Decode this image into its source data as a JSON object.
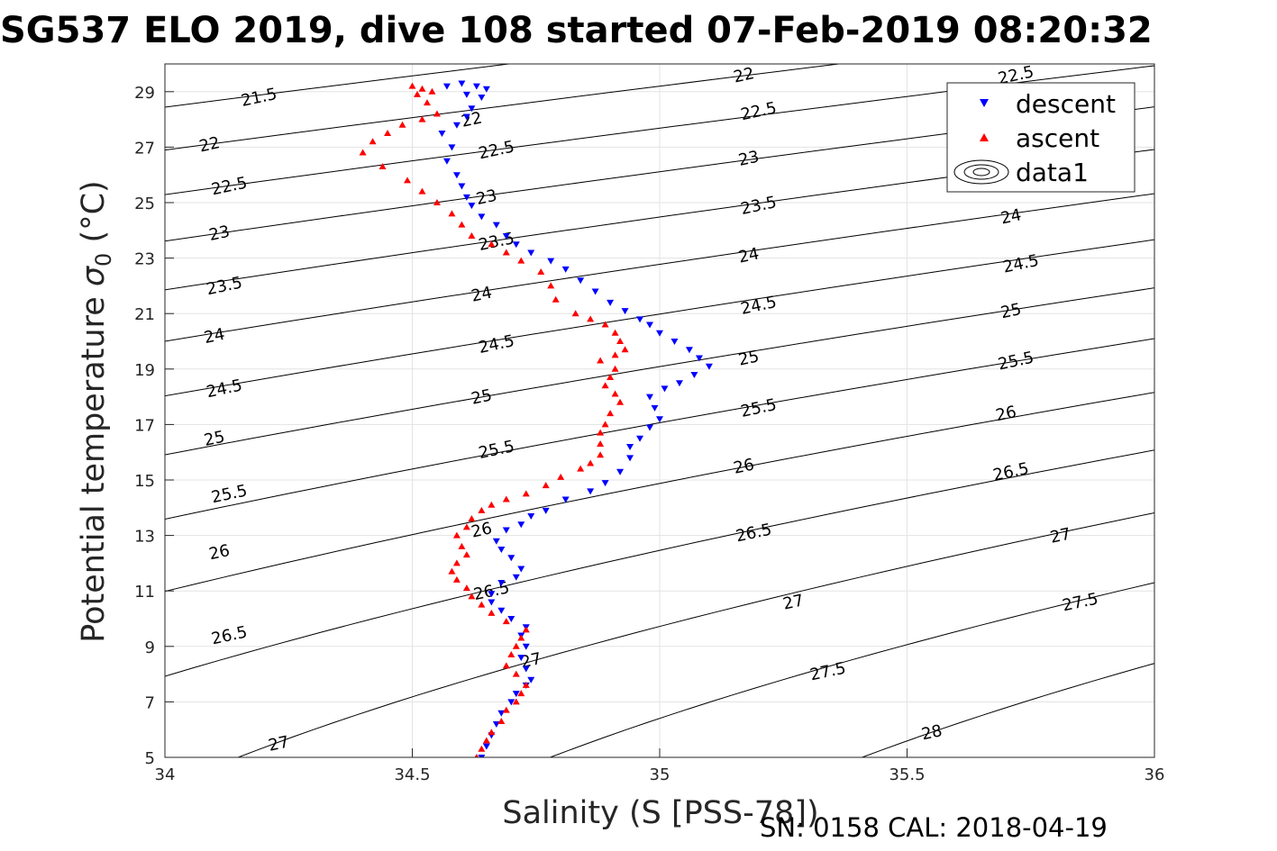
{
  "chart_data": {
    "type": "scatter",
    "title": "SG537 ELO 2019, dive 108 started 07-Feb-2019 08:20:32",
    "xlabel": "Salinity (S [PSS-78])",
    "ylabel_prefix": "Potential temperature",
    "ylabel_symbol": "σ",
    "ylabel_sub": "0",
    "ylabel_unit": "(°C)",
    "footer": "SN: 0158  CAL: 2018-04-19",
    "xlim": [
      34,
      36
    ],
    "ylim": [
      5,
      30
    ],
    "x_ticks": [
      "34",
      "34.5",
      "35",
      "35.5",
      "36"
    ],
    "x_tick_values": [
      34,
      34.5,
      35,
      35.5,
      36
    ],
    "y_ticks": [
      "5",
      "7",
      "9",
      "11",
      "13",
      "15",
      "17",
      "19",
      "21",
      "23",
      "25",
      "27",
      "29"
    ],
    "y_tick_values": [
      5,
      7,
      9,
      11,
      13,
      15,
      17,
      19,
      21,
      23,
      25,
      27,
      29
    ],
    "grid": true,
    "legend_position": "top-right",
    "legend": [
      {
        "label": "descent",
        "marker": "down-triangle",
        "color": "#0000ff"
      },
      {
        "label": "ascent",
        "marker": "up-triangle",
        "color": "#ff0000"
      },
      {
        "label": "data1",
        "marker": "contour",
        "color": "#000000"
      }
    ],
    "contours": {
      "levels": [
        21.5,
        22,
        22.5,
        23,
        23.5,
        24,
        24.5,
        25,
        25.5,
        26,
        26.5,
        27,
        27.5,
        28
      ],
      "labels": [
        {
          "text": "21.5",
          "s": 34.19,
          "t": 28.8
        },
        {
          "text": "22",
          "s": 34.09,
          "t": 27.1
        },
        {
          "text": "22.5",
          "s": 34.13,
          "t": 25.6
        },
        {
          "text": "23",
          "s": 34.11,
          "t": 23.9
        },
        {
          "text": "23.5",
          "s": 34.12,
          "t": 22.0
        },
        {
          "text": "24",
          "s": 34.1,
          "t": 20.2
        },
        {
          "text": "24.5",
          "s": 34.12,
          "t": 18.3
        },
        {
          "text": "25",
          "s": 34.1,
          "t": 16.5
        },
        {
          "text": "25.5",
          "s": 34.13,
          "t": 14.5
        },
        {
          "text": "26",
          "s": 34.11,
          "t": 12.4
        },
        {
          "text": "26.5",
          "s": 34.13,
          "t": 9.4
        },
        {
          "text": "27",
          "s": 34.23,
          "t": 5.5
        },
        {
          "text": "22",
          "s": 34.62,
          "t": 28.0
        },
        {
          "text": "22.5",
          "s": 34.67,
          "t": 26.9
        },
        {
          "text": "23",
          "s": 34.65,
          "t": 25.2
        },
        {
          "text": "23.5",
          "s": 34.67,
          "t": 23.6
        },
        {
          "text": "24",
          "s": 34.64,
          "t": 21.7
        },
        {
          "text": "24.5",
          "s": 34.67,
          "t": 19.9
        },
        {
          "text": "25",
          "s": 34.64,
          "t": 18.0
        },
        {
          "text": "25.5",
          "s": 34.67,
          "t": 16.1
        },
        {
          "text": "26",
          "s": 34.64,
          "t": 13.2
        },
        {
          "text": "26.5",
          "s": 34.66,
          "t": 11.0
        },
        {
          "text": "27",
          "s": 34.74,
          "t": 8.5
        },
        {
          "text": "22",
          "s": 35.17,
          "t": 29.6
        },
        {
          "text": "22.5",
          "s": 35.2,
          "t": 28.3
        },
        {
          "text": "23",
          "s": 35.18,
          "t": 26.6
        },
        {
          "text": "23.5",
          "s": 35.2,
          "t": 24.9
        },
        {
          "text": "24",
          "s": 35.18,
          "t": 23.1
        },
        {
          "text": "24.5",
          "s": 35.2,
          "t": 21.3
        },
        {
          "text": "25",
          "s": 35.18,
          "t": 19.4
        },
        {
          "text": "25.5",
          "s": 35.2,
          "t": 17.6
        },
        {
          "text": "26",
          "s": 35.17,
          "t": 15.5
        },
        {
          "text": "26.5",
          "s": 35.19,
          "t": 13.1
        },
        {
          "text": "27",
          "s": 35.27,
          "t": 10.6
        },
        {
          "text": "27.5",
          "s": 35.34,
          "t": 8.1
        },
        {
          "text": "28",
          "s": 35.55,
          "t": 5.9
        },
        {
          "text": "22.5",
          "s": 35.72,
          "t": 29.6
        },
        {
          "text": "24",
          "s": 35.71,
          "t": 24.5
        },
        {
          "text": "24.5",
          "s": 35.73,
          "t": 22.8
        },
        {
          "text": "25",
          "s": 35.71,
          "t": 21.1
        },
        {
          "text": "25.5",
          "s": 35.72,
          "t": 19.3
        },
        {
          "text": "26",
          "s": 35.7,
          "t": 17.4
        },
        {
          "text": "26.5",
          "s": 35.71,
          "t": 15.3
        },
        {
          "text": "27",
          "s": 35.81,
          "t": 13.0
        },
        {
          "text": "27.5",
          "s": 35.85,
          "t": 10.6
        }
      ]
    },
    "series": [
      {
        "name": "descent",
        "marker": "down-triangle",
        "color": "#0000ff",
        "points": [
          [
            34.64,
            5.0
          ],
          [
            34.65,
            5.4
          ],
          [
            34.66,
            5.8
          ],
          [
            34.67,
            6.2
          ],
          [
            34.68,
            6.6
          ],
          [
            34.7,
            7.0
          ],
          [
            34.71,
            7.3
          ],
          [
            34.73,
            7.6
          ],
          [
            34.74,
            7.8
          ],
          [
            34.73,
            8.2
          ],
          [
            34.72,
            8.6
          ],
          [
            34.73,
            9.0
          ],
          [
            34.72,
            9.4
          ],
          [
            34.73,
            9.7
          ],
          [
            34.7,
            10.0
          ],
          [
            34.68,
            10.3
          ],
          [
            34.66,
            10.6
          ],
          [
            34.66,
            10.9
          ],
          [
            34.68,
            11.3
          ],
          [
            34.71,
            11.5
          ],
          [
            34.72,
            11.8
          ],
          [
            34.7,
            12.2
          ],
          [
            34.68,
            12.5
          ],
          [
            34.67,
            12.8
          ],
          [
            34.69,
            13.2
          ],
          [
            34.72,
            13.4
          ],
          [
            34.74,
            13.7
          ],
          [
            34.77,
            13.9
          ],
          [
            34.81,
            14.3
          ],
          [
            34.86,
            14.6
          ],
          [
            34.89,
            14.9
          ],
          [
            34.92,
            15.3
          ],
          [
            34.94,
            15.8
          ],
          [
            34.94,
            16.2
          ],
          [
            34.96,
            16.5
          ],
          [
            34.98,
            16.9
          ],
          [
            35.0,
            17.2
          ],
          [
            34.99,
            17.6
          ],
          [
            34.98,
            18.0
          ],
          [
            35.01,
            18.3
          ],
          [
            35.04,
            18.5
          ],
          [
            35.07,
            18.8
          ],
          [
            35.1,
            19.1
          ],
          [
            35.08,
            19.4
          ],
          [
            35.06,
            19.7
          ],
          [
            35.03,
            20.0
          ],
          [
            35.0,
            20.3
          ],
          [
            34.98,
            20.6
          ],
          [
            34.96,
            20.8
          ],
          [
            34.93,
            21.1
          ],
          [
            34.9,
            21.4
          ],
          [
            34.87,
            21.8
          ],
          [
            34.84,
            22.2
          ],
          [
            34.81,
            22.6
          ],
          [
            34.78,
            22.9
          ],
          [
            34.74,
            23.2
          ],
          [
            34.71,
            23.5
          ],
          [
            34.69,
            23.8
          ],
          [
            34.67,
            24.2
          ],
          [
            34.64,
            24.5
          ],
          [
            34.62,
            24.9
          ],
          [
            34.61,
            25.2
          ],
          [
            34.6,
            25.6
          ],
          [
            34.59,
            26.0
          ],
          [
            34.57,
            26.5
          ],
          [
            34.58,
            27.0
          ],
          [
            34.56,
            27.5
          ],
          [
            34.59,
            27.8
          ],
          [
            34.61,
            28.1
          ],
          [
            34.62,
            28.4
          ],
          [
            34.64,
            28.8
          ],
          [
            34.65,
            29.1
          ],
          [
            34.63,
            29.2
          ],
          [
            34.6,
            29.3
          ],
          [
            34.57,
            29.2
          ],
          [
            34.61,
            28.9
          ]
        ]
      },
      {
        "name": "ascent",
        "marker": "up-triangle",
        "color": "#ff0000",
        "points": [
          [
            34.63,
            5.0
          ],
          [
            34.64,
            5.3
          ],
          [
            34.65,
            5.6
          ],
          [
            34.66,
            5.9
          ],
          [
            34.68,
            6.3
          ],
          [
            34.69,
            6.7
          ],
          [
            34.71,
            7.0
          ],
          [
            34.72,
            7.3
          ],
          [
            34.73,
            7.6
          ],
          [
            34.71,
            8.0
          ],
          [
            34.69,
            8.3
          ],
          [
            34.7,
            8.7
          ],
          [
            34.71,
            9.0
          ],
          [
            34.72,
            9.3
          ],
          [
            34.73,
            9.6
          ],
          [
            34.69,
            9.9
          ],
          [
            34.66,
            10.2
          ],
          [
            34.64,
            10.5
          ],
          [
            34.62,
            10.8
          ],
          [
            34.61,
            11.1
          ],
          [
            34.59,
            11.4
          ],
          [
            34.58,
            11.7
          ],
          [
            34.59,
            12.0
          ],
          [
            34.61,
            12.3
          ],
          [
            34.6,
            12.6
          ],
          [
            34.59,
            13.0
          ],
          [
            34.61,
            13.3
          ],
          [
            34.62,
            13.6
          ],
          [
            34.64,
            13.9
          ],
          [
            34.66,
            14.1
          ],
          [
            34.69,
            14.3
          ],
          [
            34.73,
            14.5
          ],
          [
            34.77,
            14.8
          ],
          [
            34.8,
            15.1
          ],
          [
            34.84,
            15.4
          ],
          [
            34.86,
            15.6
          ],
          [
            34.88,
            15.9
          ],
          [
            34.88,
            16.3
          ],
          [
            34.88,
            16.7
          ],
          [
            34.89,
            17.0
          ],
          [
            34.9,
            17.4
          ],
          [
            34.92,
            17.8
          ],
          [
            34.91,
            18.1
          ],
          [
            34.89,
            18.4
          ],
          [
            34.9,
            18.7
          ],
          [
            34.91,
            19.0
          ],
          [
            34.88,
            19.3
          ],
          [
            34.91,
            19.5
          ],
          [
            34.93,
            19.7
          ],
          [
            34.92,
            20.0
          ],
          [
            34.91,
            20.3
          ],
          [
            34.89,
            20.6
          ],
          [
            34.86,
            20.8
          ],
          [
            34.83,
            21.0
          ],
          [
            34.79,
            21.5
          ],
          [
            34.78,
            22.0
          ],
          [
            34.76,
            22.5
          ],
          [
            34.72,
            22.9
          ],
          [
            34.69,
            23.2
          ],
          [
            34.66,
            23.5
          ],
          [
            34.62,
            23.8
          ],
          [
            34.6,
            24.2
          ],
          [
            34.58,
            24.6
          ],
          [
            34.55,
            25.0
          ],
          [
            34.52,
            25.4
          ],
          [
            34.49,
            25.8
          ],
          [
            34.44,
            26.3
          ],
          [
            34.4,
            26.8
          ],
          [
            34.42,
            27.2
          ],
          [
            34.45,
            27.5
          ],
          [
            34.48,
            27.8
          ],
          [
            34.52,
            28.0
          ],
          [
            34.55,
            28.2
          ],
          [
            34.53,
            28.6
          ],
          [
            34.51,
            28.9
          ],
          [
            34.52,
            29.1
          ],
          [
            34.54,
            29.0
          ],
          [
            34.5,
            29.2
          ]
        ]
      }
    ]
  }
}
